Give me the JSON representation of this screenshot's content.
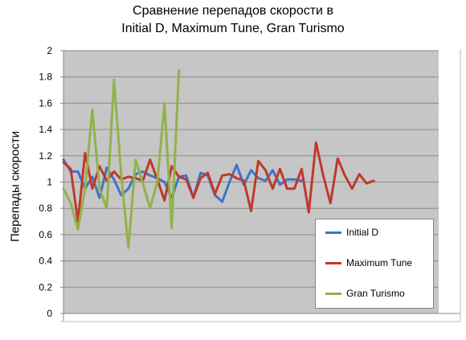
{
  "chart_data": {
    "type": "line",
    "title": [
      "Сравнение перепадов скорости в",
      "Initial D, Maximum Tune, Gran Turismo"
    ],
    "ylabel": "Перепады скорости",
    "xlabel": "",
    "ylim": [
      0,
      2
    ],
    "yticks": [
      "0",
      "0.2",
      "0.4",
      "0.6",
      "0.8",
      "1",
      "1.2",
      "1.4",
      "1.6",
      "1.8",
      "2"
    ],
    "grid": "horizontal",
    "legend_position": "bottom-right",
    "x_count": 53,
    "series": [
      {
        "name": "Initial D",
        "color": "#4472C4",
        "values": [
          1.17,
          1.08,
          1.08,
          0.95,
          1.04,
          0.88,
          1.11,
          1.02,
          0.9,
          0.95,
          1.06,
          1.08,
          1.05,
          1.03,
          1.0,
          0.88,
          1.04,
          1.05,
          0.88,
          1.07,
          1.05,
          0.9,
          0.85,
          1.0,
          1.13,
          0.98,
          1.09,
          1.03,
          1.01,
          1.09,
          0.98,
          1.02,
          1.02,
          1.01
        ]
      },
      {
        "name": "Maximum Tune",
        "color": "#C0392B",
        "values": [
          1.15,
          1.1,
          0.7,
          1.22,
          0.95,
          1.12,
          1.01,
          1.08,
          1.02,
          1.04,
          1.03,
          1.01,
          1.17,
          1.02,
          0.86,
          1.12,
          1.04,
          1.02,
          0.88,
          1.03,
          1.07,
          0.91,
          1.05,
          1.06,
          1.03,
          1.01,
          0.78,
          1.16,
          1.09,
          0.95,
          1.1,
          0.95,
          0.95,
          1.1,
          0.77,
          1.3,
          1.05,
          0.84,
          1.18,
          1.05,
          0.95,
          1.06,
          0.99,
          1.01
        ]
      },
      {
        "name": "Gran Turismo",
        "color": "#92B24A",
        "values": [
          0.95,
          0.84,
          0.64,
          0.95,
          1.55,
          0.95,
          0.8,
          1.78,
          1.06,
          0.5,
          1.17,
          0.99,
          0.8,
          1.0,
          1.6,
          0.65,
          1.85
        ]
      }
    ]
  }
}
